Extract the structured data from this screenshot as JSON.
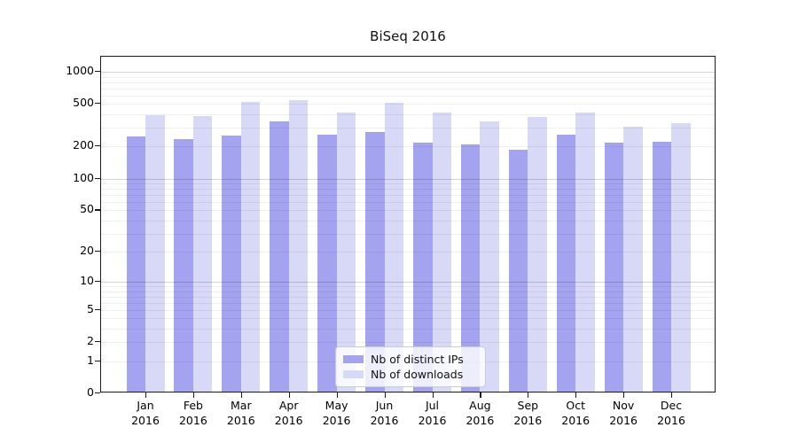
{
  "figure": {
    "title": "BiSeq 2016",
    "background_color": "#ffffff"
  },
  "chart_data": {
    "type": "bar",
    "title": "BiSeq 2016",
    "categories": [
      "Jan",
      "Feb",
      "Mar",
      "Apr",
      "May",
      "Jun",
      "Jul",
      "Aug",
      "Sep",
      "Oct",
      "Nov",
      "Dec"
    ],
    "category_year": "2016",
    "series": [
      {
        "name": "Nb of distinct IPs",
        "color": "#a3a3ef",
        "values": [
          240,
          225,
          245,
          330,
          250,
          265,
          210,
          200,
          180,
          250,
          210,
          215
        ]
      },
      {
        "name": "Nb of downloads",
        "color": "#d8d8f7",
        "values": [
          380,
          370,
          500,
          520,
          400,
          490,
          400,
          330,
          365,
          400,
          295,
          320
        ]
      }
    ],
    "xlabel": "",
    "ylabel": "",
    "y_scale": "log1p",
    "y_ticks": [
      0,
      1,
      2,
      5,
      10,
      20,
      50,
      100,
      200,
      500,
      1000
    ],
    "ylim": [
      0,
      1381
    ],
    "grid": "on",
    "grid_major_values": [
      10,
      100,
      1000
    ],
    "grid_minor_values": [
      1,
      2,
      3,
      4,
      5,
      6,
      7,
      8,
      9,
      20,
      30,
      40,
      50,
      60,
      70,
      80,
      90,
      200,
      300,
      400,
      500,
      600,
      700,
      800,
      900
    ],
    "grid_major_color": "rgba(0,0,0,0.17)",
    "grid_minor_color": "rgba(0,0,0,0.06)",
    "legend": {
      "entries": [
        "Nb of distinct IPs",
        "Nb of downloads"
      ],
      "position": "lower center"
    }
  }
}
